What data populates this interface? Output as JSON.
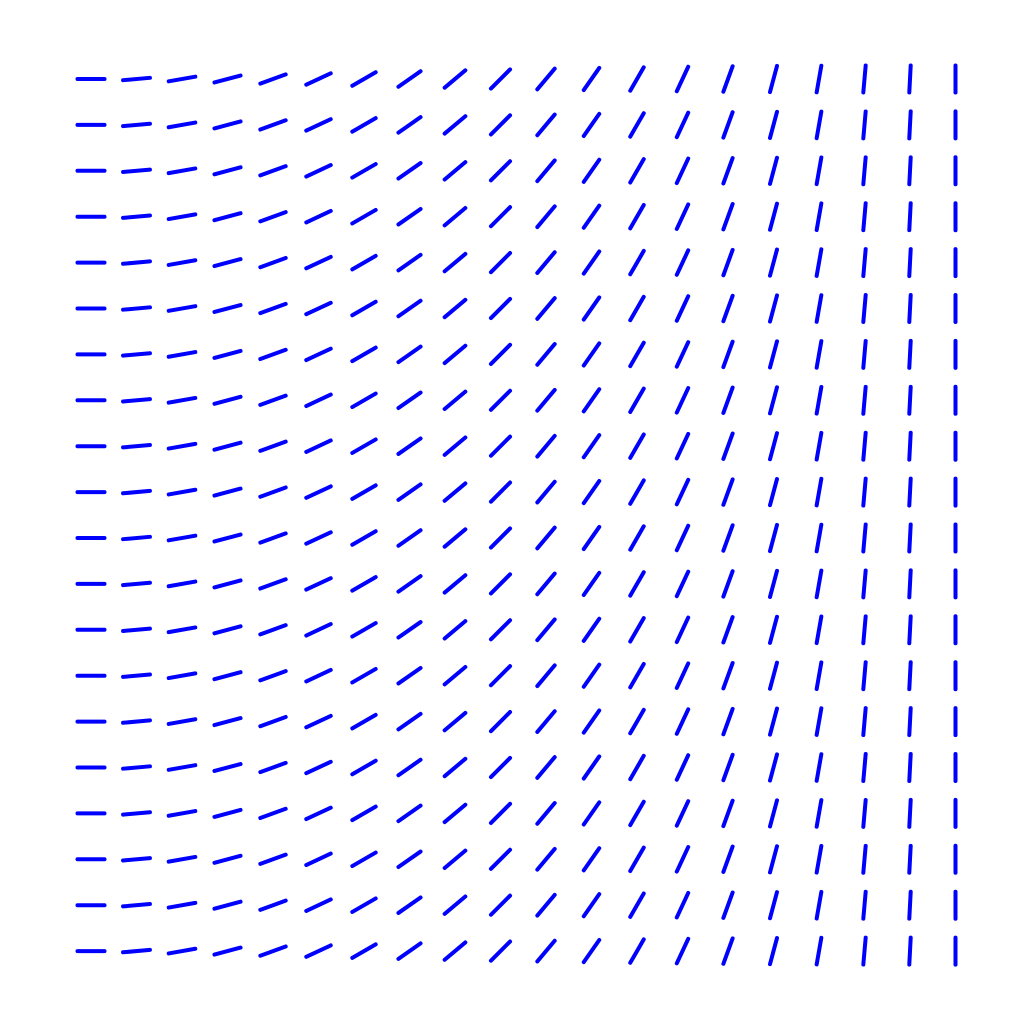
{
  "chart_data": {
    "type": "scatter",
    "subtype": "direction-field",
    "title": "",
    "xlabel": "",
    "ylabel": "",
    "grid": false,
    "axes_visible": false,
    "columns": 20,
    "rows": 20,
    "x": [
      0,
      1,
      2,
      3,
      4,
      5,
      6,
      7,
      8,
      9,
      10,
      11,
      12,
      13,
      14,
      15,
      16,
      17,
      18,
      19
    ],
    "y": [
      0,
      1,
      2,
      3,
      4,
      5,
      6,
      7,
      8,
      9,
      10,
      11,
      12,
      13,
      14,
      15,
      16,
      17,
      18,
      19
    ],
    "series": [
      {
        "angles_deg": [
          0,
          5,
          10,
          15,
          20,
          25,
          30,
          35,
          40,
          45,
          50,
          55,
          60,
          65,
          70,
          75,
          80,
          85,
          87,
          90
        ],
        "color": "#0000ff"
      }
    ]
  }
}
